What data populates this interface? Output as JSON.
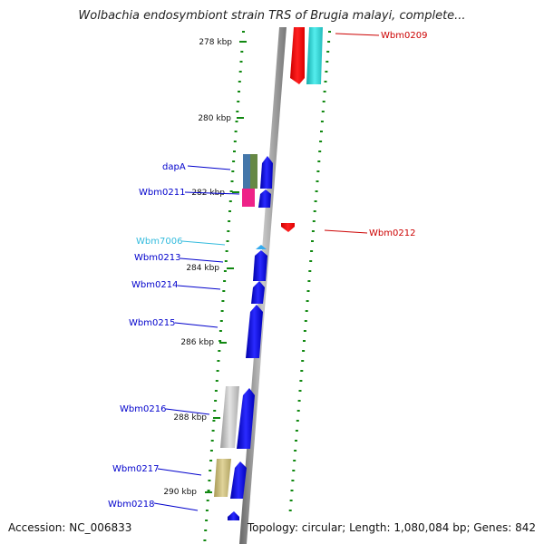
{
  "header": {
    "title": "Wolbachia endosymbiont strain TRS of Brugia malayi, complete..."
  },
  "footer": {
    "accession": "Accession: NC_006833",
    "summary": "Topology: circular; Length: 1,080,084 bp; Genes: 842"
  },
  "colors": {
    "forward_gene": "#0000ee",
    "reverse_gene": "#ee0000",
    "label_blue": "#0000cc",
    "label_light_blue": "#33bbdd",
    "label_red": "#cc0000",
    "tick_green": "#118811",
    "backbone": "#888888"
  },
  "ruler": {
    "ticks": [
      "278 kbp",
      "280 kbp",
      "282 kbp",
      "284 kbp",
      "286 kbp",
      "288 kbp",
      "290 kbp"
    ]
  },
  "genes": {
    "dapA": "dapA",
    "wbm0211": "Wbm0211",
    "wbm7006": "Wbm7006",
    "wbm0213": "Wbm0213",
    "wbm0214": "Wbm0214",
    "wbm0215": "Wbm0215",
    "wbm0216": "Wbm0216",
    "wbm0217": "Wbm0217",
    "wbm0218": "Wbm0218",
    "wbm0209": "Wbm0209",
    "wbm0212": "Wbm0212"
  }
}
